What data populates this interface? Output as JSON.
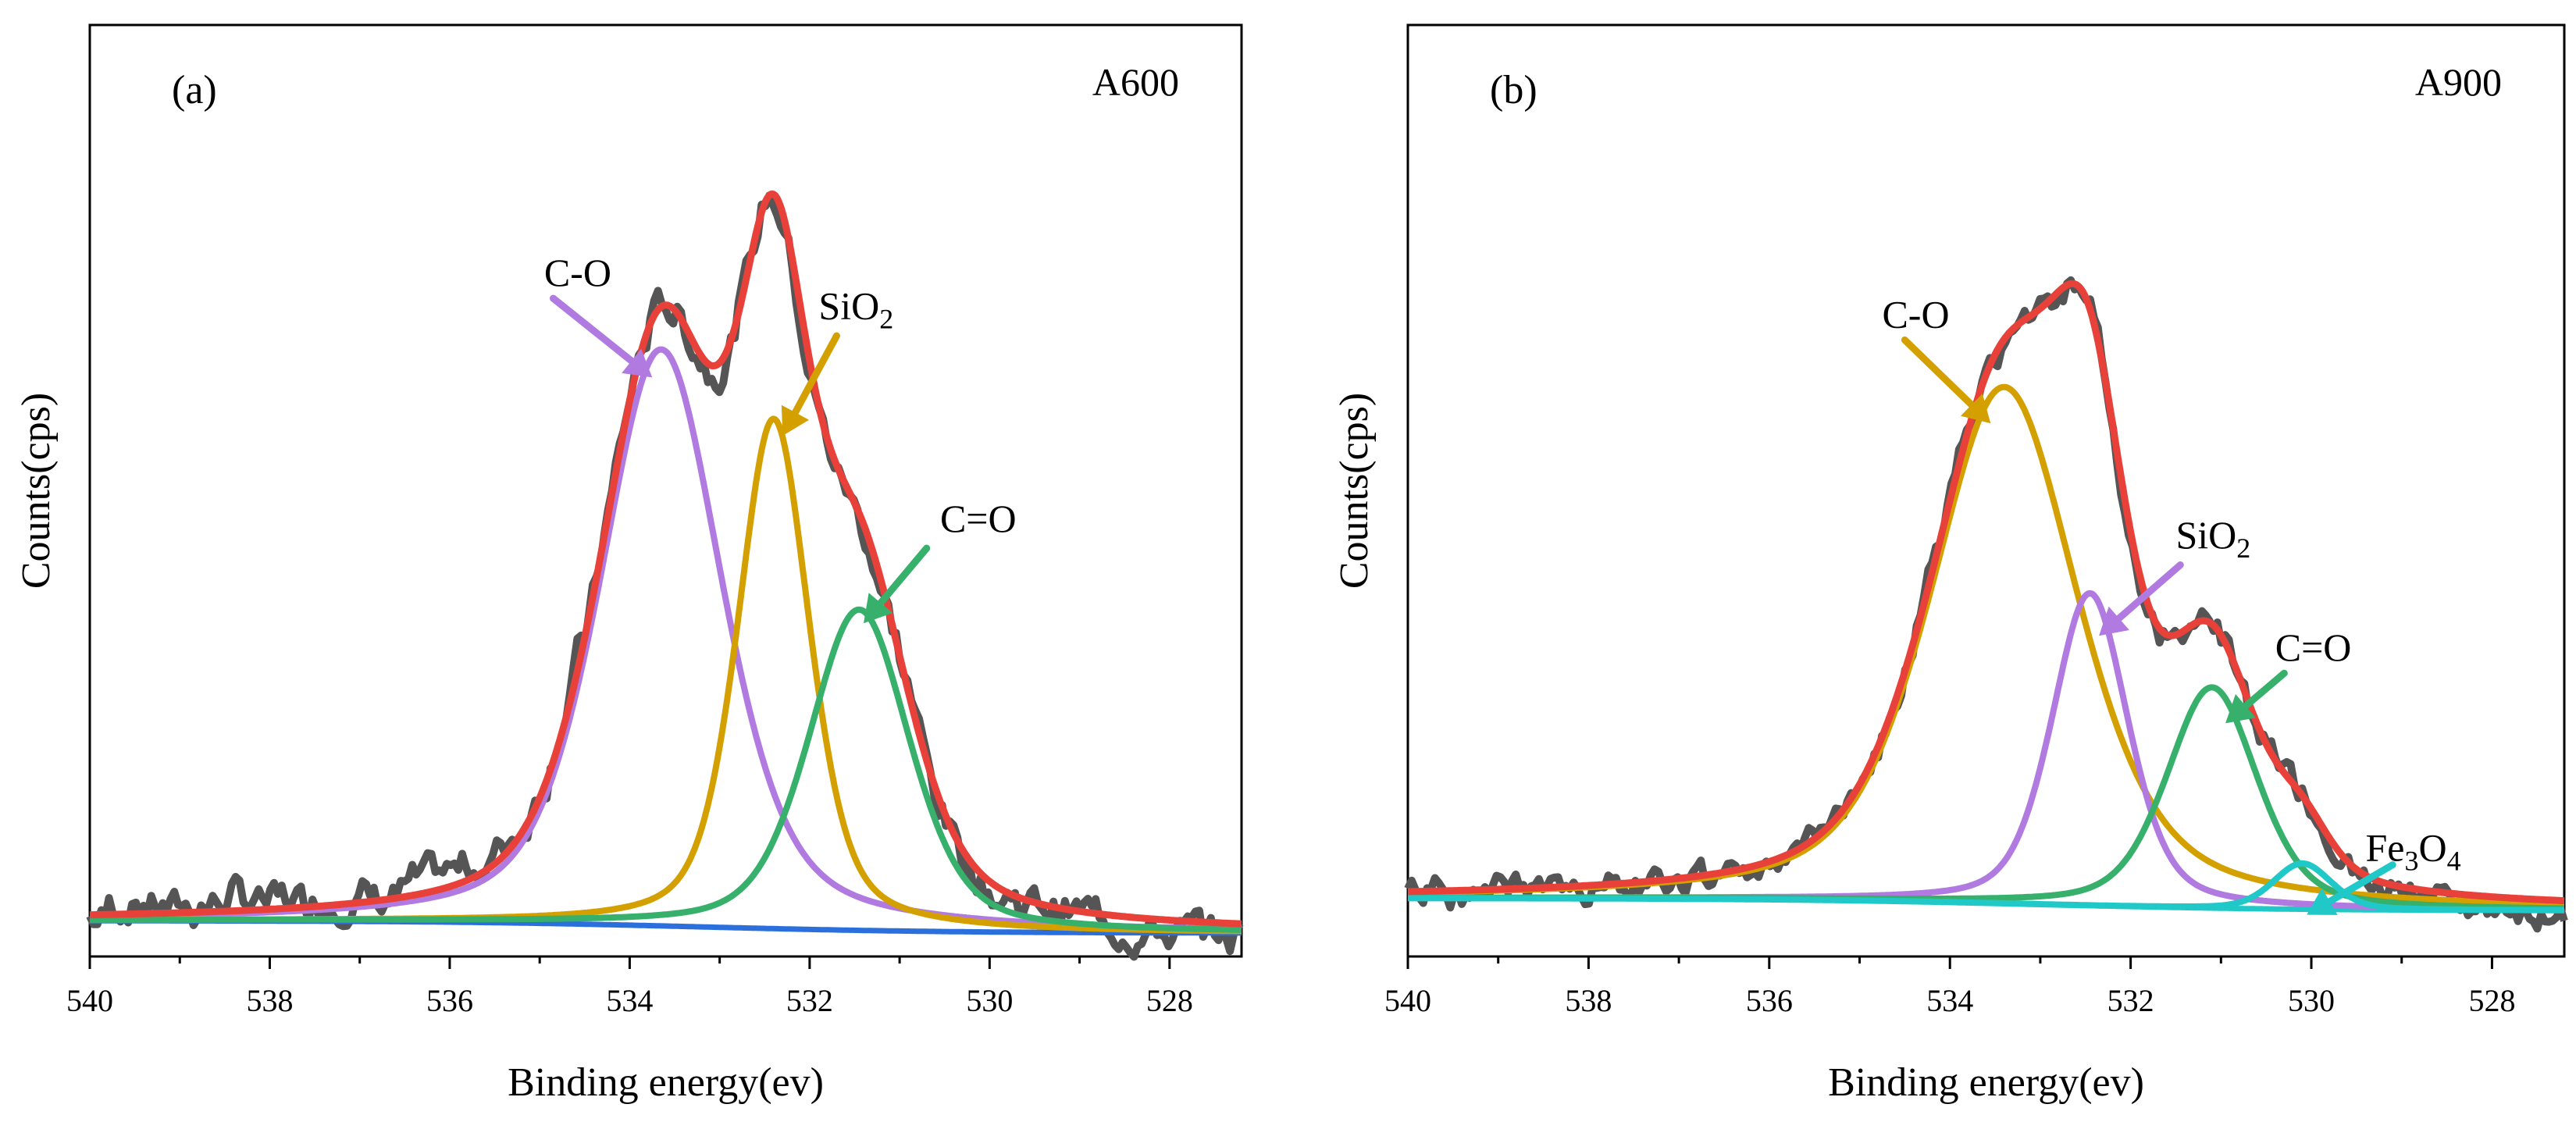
{
  "chart_data": [
    {
      "type": "line",
      "panel_label": "(a)",
      "sample": "A600",
      "xlabel": "Binding energy(ev)",
      "ylabel": "Counts(cps)",
      "xlim": [
        540,
        527.2
      ],
      "ylim": [
        0,
        1
      ],
      "x_ticks": [
        540,
        538,
        536,
        534,
        532,
        530,
        528
      ],
      "y_ticks_shown": false,
      "raw_noise_seed": 7,
      "raw_wiggle": 0.016,
      "baseline": {
        "name": "Background",
        "color": "#2a6fdb",
        "start": 0.043,
        "end": 0.028,
        "center": 533.2,
        "width": 1.4
      },
      "fit": {
        "name": "Fit",
        "color": "#e8413a"
      },
      "raw": {
        "name": "Raw",
        "color": "#555555"
      },
      "components": [
        {
          "name": "C-O",
          "label": "C-O",
          "color": "#b07ae0",
          "center": 533.65,
          "height": 0.692,
          "sigma": 0.68,
          "tail": 0.45
        },
        {
          "name": "SiO2",
          "label": "SiO",
          "subscript": "2",
          "color": "#d4a000",
          "center": 532.4,
          "height": 0.612,
          "sigma": 0.4,
          "tail": 0.45
        },
        {
          "name": "C=O",
          "label": "C=O",
          "color": "#36b06b",
          "center": 531.45,
          "height": 0.385,
          "sigma": 0.56,
          "tail": 0.4
        }
      ],
      "arrows": [
        {
          "label": "C-O",
          "color": "#b07ae0",
          "from": [
            534.85,
            0.79
          ],
          "to": [
            533.75,
            0.695
          ]
        },
        {
          "label": "SiO2",
          "color": "#d4a000",
          "from": [
            531.7,
            0.745
          ],
          "to": [
            532.3,
            0.625
          ]
        },
        {
          "label": "C=O",
          "color": "#36b06b",
          "from": [
            530.7,
            0.49
          ],
          "to": [
            531.4,
            0.4
          ]
        }
      ],
      "labels_at": [
        {
          "text": "C-O",
          "x": 534.95,
          "y": 0.805
        },
        {
          "text": "SiO",
          "sub": "2",
          "x": 531.9,
          "y": 0.765
        },
        {
          "text": "C=O",
          "x": 530.55,
          "y": 0.51
        }
      ]
    },
    {
      "type": "line",
      "panel_label": "(b)",
      "sample": "A900",
      "xlabel": "Binding energy(ev)",
      "ylabel": "Counts(cps)",
      "xlim": [
        540,
        527.2
      ],
      "ylim": [
        0,
        1
      ],
      "x_ticks": [
        540,
        538,
        536,
        534,
        532,
        530,
        528
      ],
      "y_ticks_shown": false,
      "raw_noise_seed": 19,
      "raw_wiggle": 0.012,
      "baseline": {
        "name": "Background",
        "color": "#20c8c8",
        "start": 0.07,
        "end": 0.055,
        "center": 533.0,
        "width": 1.4
      },
      "fit": {
        "name": "Fit",
        "color": "#e8413a"
      },
      "raw": {
        "name": "Raw",
        "color": "#555555"
      },
      "components": [
        {
          "name": "C-O",
          "label": "C-O",
          "color": "#d4a000",
          "center": 533.4,
          "height": 0.62,
          "sigma": 0.82,
          "tail": 0.5
        },
        {
          "name": "SiO2",
          "label": "SiO",
          "subscript": "2",
          "color": "#b07ae0",
          "center": 532.45,
          "height": 0.375,
          "sigma": 0.42,
          "tail": 0.4
        },
        {
          "name": "C=O",
          "label": "C=O",
          "color": "#36b06b",
          "center": 531.1,
          "height": 0.265,
          "sigma": 0.5,
          "tail": 0.4
        },
        {
          "name": "Fe3O4",
          "label": "Fe",
          "subscript": "3",
          "label2": "O",
          "subscript2": "4",
          "color": "#20c8c8",
          "center": 530.1,
          "height": 0.055,
          "sigma": 0.32,
          "tail": 0.3
        }
      ],
      "arrows": [
        {
          "label": "C-O",
          "color": "#d4a000",
          "from": [
            534.5,
            0.74
          ],
          "to": [
            533.55,
            0.64
          ]
        },
        {
          "label": "SiO2",
          "color": "#b07ae0",
          "from": [
            531.45,
            0.47
          ],
          "to": [
            532.35,
            0.385
          ]
        },
        {
          "label": "C=O",
          "color": "#36b06b",
          "from": [
            530.3,
            0.34
          ],
          "to": [
            530.95,
            0.28
          ]
        },
        {
          "label": "Fe3O4",
          "color": "#20c8c8",
          "from": [
            529.1,
            0.11
          ],
          "to": [
            530.05,
            0.05
          ]
        }
      ],
      "labels_at": [
        {
          "text": "C-O",
          "x": 534.75,
          "y": 0.755
        },
        {
          "text": "SiO",
          "sub": "2",
          "x": 531.5,
          "y": 0.49
        },
        {
          "text": "C=O",
          "x": 530.4,
          "y": 0.355
        },
        {
          "text": "Fe",
          "sub": "3",
          "text2": "O",
          "sub2": "4",
          "x": 529.4,
          "y": 0.115
        }
      ]
    }
  ]
}
